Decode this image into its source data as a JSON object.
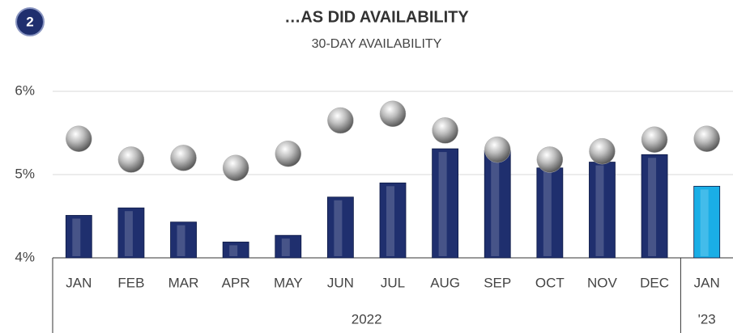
{
  "chart_data": {
    "type": "bar",
    "badge": "2",
    "title": "…AS DID AVAILABILITY",
    "subtitle": "30-DAY AVAILABILITY",
    "category_groups": [
      {
        "label": "2022",
        "categories": [
          "JAN",
          "FEB",
          "MAR",
          "APR",
          "MAY",
          "JUN",
          "JUL",
          "AUG",
          "SEP",
          "OCT",
          "NOV",
          "DEC"
        ]
      },
      {
        "label": "'23",
        "categories": [
          "JAN"
        ]
      }
    ],
    "series": [
      {
        "type": "bar",
        "colors": [
          "#1f2f6e",
          "#1f2f6e",
          "#1f2f6e",
          "#1f2f6e",
          "#1f2f6e",
          "#1f2f6e",
          "#1f2f6e",
          "#1f2f6e",
          "#1f2f6e",
          "#1f2f6e",
          "#1f2f6e",
          "#1f2f6e",
          "#1aaee6"
        ],
        "values": [
          4.51,
          4.6,
          4.43,
          4.19,
          4.27,
          4.73,
          4.9,
          5.31,
          5.29,
          5.08,
          5.15,
          5.24,
          4.86
        ]
      },
      {
        "type": "scatter",
        "color": "#b0b0b0",
        "values": [
          5.43,
          5.18,
          5.2,
          5.08,
          5.25,
          5.65,
          5.73,
          5.53,
          5.3,
          5.18,
          5.28,
          5.42,
          5.43
        ]
      }
    ],
    "ylim": [
      4,
      6
    ],
    "yticks": [
      {
        "value": 4,
        "label": "4%"
      },
      {
        "value": 5,
        "label": "5%"
      },
      {
        "value": 6,
        "label": "6%"
      }
    ],
    "grid": true
  }
}
